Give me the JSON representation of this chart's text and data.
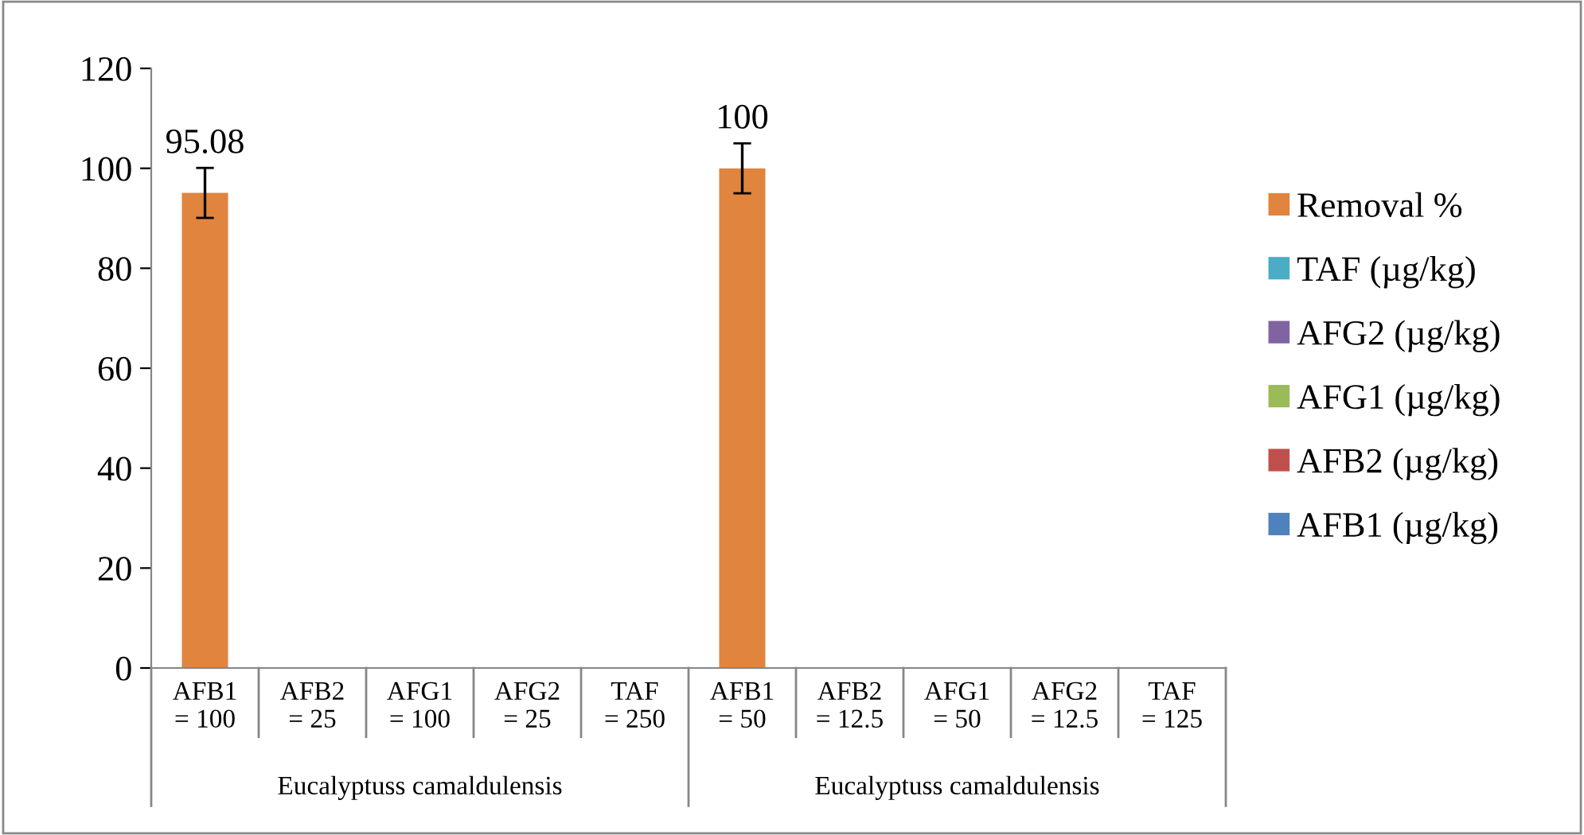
{
  "chart_data": {
    "type": "bar",
    "categories": [
      "AFB1\n= 100",
      "AFB2\n= 25",
      "AFG1\n= 100",
      "AFG2\n= 25",
      "TAF\n= 250",
      "AFB1\n= 50",
      "AFB2\n= 12.5",
      "AFG1\n= 50",
      "AFG2\n= 12.5",
      "TAF\n= 125"
    ],
    "series": [
      {
        "name": "Removal %",
        "color": "#e0843e",
        "values": [
          95.08,
          null,
          null,
          null,
          null,
          100,
          null,
          null,
          null,
          null
        ],
        "errors": [
          5,
          null,
          null,
          null,
          null,
          5,
          null,
          null,
          null,
          null
        ]
      },
      {
        "name": "TAF (µg/kg)",
        "color": "#4bacc6",
        "values": [
          null,
          null,
          null,
          null,
          null,
          null,
          null,
          null,
          null,
          null
        ]
      },
      {
        "name": "AFG2 (µg/kg)",
        "color": "#8064a2",
        "values": [
          null,
          null,
          null,
          null,
          null,
          null,
          null,
          null,
          null,
          null
        ]
      },
      {
        "name": "AFG1 (µg/kg)",
        "color": "#9bbb59",
        "values": [
          null,
          null,
          null,
          null,
          null,
          null,
          null,
          null,
          null,
          null
        ]
      },
      {
        "name": "AFB2 (µg/kg)",
        "color": "#c0504d",
        "values": [
          null,
          null,
          null,
          null,
          null,
          null,
          null,
          null,
          null,
          null
        ]
      },
      {
        "name": "AFB1 (µg/kg)",
        "color": "#4f81bd",
        "values": [
          null,
          null,
          null,
          null,
          null,
          null,
          null,
          null,
          null,
          null
        ]
      }
    ],
    "annotations": [
      "Eucalyptuss camaldulensis",
      "Eucalyptuss camaldulensis"
    ],
    "ylim": [
      0,
      120
    ],
    "yticks": [
      0,
      20,
      40,
      60,
      80,
      100,
      120
    ],
    "data_labels": true,
    "legend": "right",
    "grid": false
  }
}
